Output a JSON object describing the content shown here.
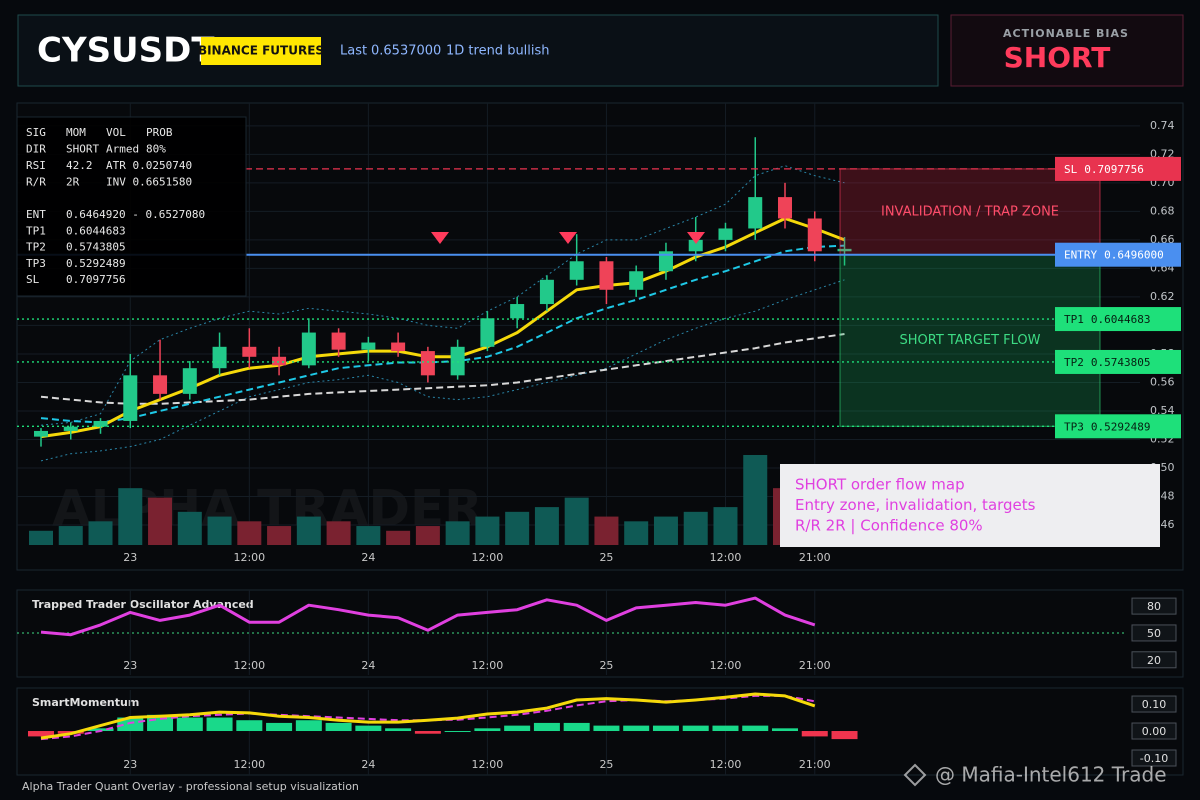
{
  "header": {
    "symbol": "CYSUSDT",
    "exchange": "BINANCE FUTURES",
    "last_label": "Last",
    "last_price": "0.6537000",
    "trend": "1D trend bullish"
  },
  "bias": {
    "label": "ACTIONABLE BIAS",
    "value": "SHORT"
  },
  "info_panel": {
    "rows": [
      [
        "SIG",
        "MOM",
        "VOL",
        "PROB"
      ],
      [
        "DIR",
        "SHORT",
        "Armed",
        "80%"
      ],
      [
        "RSI",
        "42.2",
        "ATR 0.0250740"
      ],
      [
        "R/R",
        "2R",
        "INV 0.6651580"
      ]
    ],
    "levels": [
      [
        "ENT",
        "0.6464920 - 0.6527080"
      ],
      [
        "TP1",
        "0.6044683"
      ],
      [
        "TP2",
        "0.5743805"
      ],
      [
        "TP3",
        "0.5292489"
      ],
      [
        "SL",
        "0.7097756"
      ]
    ]
  },
  "note": {
    "lines": [
      "SHORT order flow map",
      "Entry zone, invalidation, targets",
      "R/R 2R | Confidence 80%"
    ]
  },
  "watermark": "ALPHA TRADER",
  "footer": "Alpha Trader Quant Overlay - professional setup visualization",
  "source_watermark": "@ Mafia-Intel612 Trade",
  "chart_data": [
    {
      "type": "candlestick",
      "categories": [
        null,
        null,
        null,
        "23",
        null,
        null,
        null,
        "12:00",
        null,
        null,
        null,
        "24",
        null,
        null,
        null,
        "12:00",
        null,
        null,
        null,
        "25",
        null,
        null,
        null,
        "12:00",
        null,
        null,
        "21:00",
        null
      ],
      "open": [
        0.522,
        0.526,
        0.529,
        0.533,
        0.565,
        0.552,
        0.57,
        0.585,
        0.578,
        0.572,
        0.595,
        0.583,
        0.588,
        0.582,
        0.565,
        0.585,
        0.605,
        0.615,
        0.632,
        0.645,
        0.625,
        0.638,
        0.652,
        0.66,
        0.668,
        0.69,
        0.675,
        0.652
      ],
      "high": [
        0.528,
        0.532,
        0.535,
        0.58,
        0.59,
        0.575,
        0.595,
        0.598,
        0.585,
        0.605,
        0.598,
        0.592,
        0.595,
        0.585,
        0.59,
        0.61,
        0.62,
        0.635,
        0.664,
        0.648,
        0.642,
        0.658,
        0.676,
        0.672,
        0.732,
        0.7,
        0.68,
        0.662
      ],
      "low": [
        0.515,
        0.52,
        0.524,
        0.528,
        0.548,
        0.548,
        0.565,
        0.57,
        0.565,
        0.57,
        0.578,
        0.575,
        0.578,
        0.56,
        0.562,
        0.582,
        0.598,
        0.61,
        0.628,
        0.615,
        0.62,
        0.632,
        0.645,
        0.652,
        0.66,
        0.668,
        0.645,
        0.642
      ],
      "close": [
        0.526,
        0.529,
        0.533,
        0.565,
        0.552,
        0.57,
        0.585,
        0.578,
        0.572,
        0.595,
        0.583,
        0.588,
        0.582,
        0.565,
        0.585,
        0.605,
        0.615,
        0.632,
        0.645,
        0.625,
        0.638,
        0.652,
        0.66,
        0.668,
        0.69,
        0.675,
        0.652,
        0.6537
      ],
      "volume": [
        15,
        20,
        25,
        60,
        50,
        35,
        30,
        25,
        20,
        30,
        25,
        20,
        15,
        20,
        25,
        30,
        35,
        40,
        50,
        30,
        25,
        30,
        35,
        40,
        95,
        60,
        40,
        20
      ],
      "up_color": "#22c98a",
      "down_color": "#ef4358",
      "volume_up_color": "#0f5a55",
      "volume_down_color": "#7a2230",
      "series": [
        {
          "color": "#2a86a8",
          "style": "dotted",
          "values": [
            0.53,
            0.532,
            0.538,
            0.575,
            0.59,
            0.598,
            0.605,
            0.61,
            0.608,
            0.612,
            0.61,
            0.608,
            0.605,
            0.6,
            0.598,
            0.61,
            0.62,
            0.635,
            0.65,
            0.66,
            0.66,
            0.668,
            0.676,
            0.685,
            0.705,
            0.712,
            0.705,
            0.7
          ]
        },
        {
          "color": "#2a86a8",
          "style": "dotted",
          "values": [
            0.505,
            0.51,
            0.512,
            0.515,
            0.52,
            0.53,
            0.54,
            0.55,
            0.555,
            0.56,
            0.562,
            0.565,
            0.56,
            0.55,
            0.548,
            0.55,
            0.555,
            0.56,
            0.565,
            0.57,
            0.58,
            0.59,
            0.598,
            0.605,
            0.61,
            0.618,
            0.625,
            0.632
          ]
        },
        {
          "color": "#d8d8d8",
          "style": "dashed",
          "values": [
            0.55,
            0.548,
            0.546,
            0.545,
            0.545,
            0.546,
            0.547,
            0.548,
            0.55,
            0.552,
            0.553,
            0.554,
            0.555,
            0.556,
            0.557,
            0.558,
            0.56,
            0.563,
            0.566,
            0.569,
            0.572,
            0.575,
            0.578,
            0.581,
            0.584,
            0.588,
            0.591,
            0.594
          ]
        },
        {
          "color": "#1ec8e6",
          "style": "dashed",
          "values": [
            0.535,
            0.533,
            0.532,
            0.535,
            0.54,
            0.545,
            0.55,
            0.555,
            0.56,
            0.565,
            0.57,
            0.572,
            0.574,
            0.574,
            0.575,
            0.578,
            0.585,
            0.595,
            0.605,
            0.612,
            0.618,
            0.625,
            0.632,
            0.638,
            0.645,
            0.652,
            0.655,
            0.656
          ]
        },
        {
          "color": "#f5d90a",
          "style": "solid",
          "values": [
            0.522,
            0.525,
            0.529,
            0.54,
            0.548,
            0.556,
            0.565,
            0.57,
            0.572,
            0.578,
            0.58,
            0.582,
            0.582,
            0.578,
            0.578,
            0.585,
            0.595,
            0.61,
            0.625,
            0.628,
            0.63,
            0.638,
            0.648,
            0.655,
            0.665,
            0.675,
            0.668,
            0.66
          ]
        }
      ],
      "levels": [
        {
          "name": "SL",
          "price": 0.7097756,
          "color": "#e8334f",
          "text_color": "#ffffff",
          "style": "dashed"
        },
        {
          "name": "ENTRY",
          "price": {
            "value": 0.6496,
            "label": "0.6496000"
          },
          "color": "#4a8ff0",
          "text_color": "#ffffff",
          "style": "solid"
        },
        {
          "name": "TP1",
          "price": 0.6044683,
          "color": "#1ee07a",
          "text_color": "#062012",
          "style": "dotted"
        },
        {
          "name": "TP2",
          "price": 0.5743805,
          "color": "#1ee07a",
          "text_color": "#062012",
          "style": "dotted"
        },
        {
          "name": "TP3",
          "price": 0.5292489,
          "color": "#1ee07a",
          "text_color": "#062012",
          "style": "dotted"
        }
      ],
      "zones": {
        "invalidation": "INVALIDATION / TRAP ZONE",
        "target": "SHORT TARGET FLOW"
      },
      "ylim": [
        0.446,
        0.756
      ],
      "yticks": [
        0.46,
        0.48,
        {
          "value": 0.5,
          "label": "0.50"
        },
        0.52,
        0.54,
        0.56,
        0.58,
        {
          "value": 0.6,
          "label": "0.60"
        },
        0.62,
        0.64,
        0.66,
        0.68,
        {
          "value": 0.7,
          "label": "0.70"
        },
        0.72,
        0.74
      ],
      "grid": true
    },
    {
      "type": "line",
      "title": "Trapped Trader Oscillator Advanced",
      "categories": [
        null,
        null,
        null,
        "23",
        null,
        null,
        null,
        "12:00",
        null,
        null,
        null,
        "24",
        null,
        null,
        null,
        "12:00",
        null,
        null,
        null,
        "25",
        null,
        null,
        null,
        "12:00",
        null,
        null,
        "21:00",
        null
      ],
      "series": [
        {
          "color": "#e040e0",
          "style": "solid",
          "values": [
            51,
            48,
            59,
            73,
            64,
            70,
            81,
            62,
            62,
            81,
            76,
            70,
            67,
            53,
            70,
            73,
            76,
            87,
            81,
            64,
            78,
            81,
            84,
            81,
            89,
            70,
            59,
            null
          ]
        }
      ],
      "ref_line": 50,
      "ylim": [
        3,
        98
      ],
      "yticks": [
        80,
        50,
        20
      ]
    },
    {
      "type": "histogram",
      "title": "SmartMomentum",
      "categories": [
        null,
        null,
        null,
        "23",
        null,
        null,
        null,
        "12:00",
        null,
        null,
        null,
        "24",
        null,
        null,
        null,
        "12:00",
        null,
        null,
        null,
        "25",
        null,
        null,
        null,
        "12:00",
        null,
        null,
        "21:00",
        null
      ],
      "values": [
        -0.02,
        -0.01,
        0.01,
        0.05,
        0.06,
        0.05,
        0.05,
        0.04,
        0.03,
        0.04,
        0.03,
        0.02,
        0.01,
        -0.01,
        0,
        0.01,
        0.02,
        0.03,
        0.03,
        0.02,
        0.02,
        0.02,
        0.02,
        0.02,
        0.02,
        0.01,
        -0.02,
        -0.03
      ],
      "up_color": "#19d98a",
      "down_color": "#f0344e",
      "series": [
        {
          "color": "#e040e0",
          "style": "dashed",
          "values": [
            -0.03,
            -0.02,
            0,
            0.03,
            0.045,
            0.055,
            0.06,
            0.065,
            0.06,
            0.055,
            0.05,
            0.045,
            0.04,
            0.04,
            0.042,
            0.05,
            0.06,
            0.075,
            0.095,
            0.11,
            0.115,
            0.11,
            0.115,
            0.12,
            0.13,
            0.13,
            0.11,
            null
          ]
        },
        {
          "color": "#f5d90a",
          "style": "solid",
          "values": [
            -0.026,
            -0.01,
            0.02,
            0.05,
            0.055,
            0.06,
            0.07,
            0.067,
            0.055,
            0.05,
            0.04,
            0.033,
            0.033,
            0.04,
            0.048,
            0.063,
            0.07,
            0.085,
            0.115,
            0.12,
            0.115,
            0.107,
            0.115,
            0.125,
            0.137,
            0.13,
            0.093,
            null
          ]
        }
      ],
      "ylim": [
        -0.163,
        0.152
      ],
      "yticks": [
        {
          "value": 0.1,
          "label": "0.10"
        },
        {
          "value": 0,
          "label": "0.00"
        },
        {
          "value": -0.1,
          "label": "-0.10"
        }
      ]
    }
  ]
}
